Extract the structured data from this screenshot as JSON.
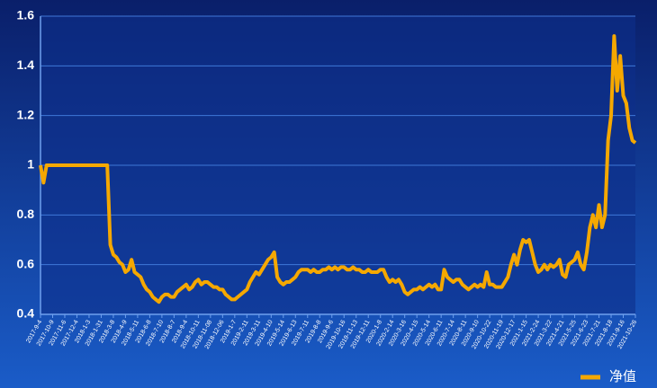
{
  "chart_data": {
    "type": "line",
    "categories": [
      "2017-9-4",
      null,
      null,
      null,
      "2017-10-9",
      null,
      null,
      null,
      "2017-11-6",
      null,
      null,
      null,
      "2017-12-4",
      null,
      null,
      null,
      "2018-1-3",
      null,
      null,
      null,
      "2018-1-31",
      null,
      null,
      null,
      "2018-3-8",
      null,
      null,
      null,
      "2018-4-9",
      null,
      null,
      null,
      "2018-5-11",
      null,
      null,
      null,
      "2018-6-8",
      null,
      null,
      null,
      "2018-7-10",
      null,
      null,
      null,
      "2018-8-7",
      null,
      null,
      null,
      "2018-9-4",
      null,
      null,
      null,
      "2018-10-11",
      null,
      null,
      null,
      "2018-11-08",
      null,
      null,
      null,
      "2018-12-06",
      null,
      null,
      null,
      "2019-1-7",
      null,
      null,
      null,
      "2019-2-11",
      null,
      null,
      null,
      "2019-3-11",
      null,
      null,
      null,
      "2019-4-10",
      null,
      null,
      null,
      "2019-5-14",
      null,
      null,
      null,
      "2019-6-13",
      null,
      null,
      null,
      "2019-7-11",
      null,
      null,
      null,
      "2019-8-8",
      null,
      null,
      null,
      "2019-9-6",
      null,
      null,
      null,
      "2019-10-16",
      null,
      null,
      null,
      "2019-11-13",
      null,
      null,
      null,
      "2019-12-11",
      null,
      null,
      null,
      "2020-1-8",
      null,
      null,
      null,
      "2020-2-14",
      null,
      null,
      null,
      "2020-3-16",
      null,
      null,
      null,
      "2020-4-15",
      null,
      null,
      null,
      "2020-5-14",
      null,
      null,
      null,
      "2020-6-11",
      null,
      null,
      null,
      "2020-7-14",
      null,
      null,
      null,
      "2020-8-11",
      null,
      null,
      null,
      "2020-9-10",
      null,
      null,
      null,
      "2020-10-22",
      null,
      null,
      null,
      "2020-11-19",
      null,
      null,
      null,
      "2020-12-17",
      null,
      null,
      null,
      "2021-1-15",
      null,
      null,
      null,
      "2021-2-24",
      null,
      null,
      null,
      "2021-3-22",
      null,
      null,
      null,
      "2021-4-21",
      null,
      null,
      null,
      "2021-5-25",
      null,
      null,
      null,
      "2021-6-23",
      null,
      null,
      null,
      "2021-7-21",
      null,
      null,
      null,
      "2021-8-18",
      null,
      null,
      null,
      "2021-9-16",
      null,
      null,
      null,
      "2021-10-26"
    ],
    "series": [
      {
        "name": "净值",
        "color": "#f5a800",
        "values": [
          1.0,
          0.93,
          1.0,
          1.0,
          1,
          1,
          1,
          1,
          1,
          1,
          1,
          1,
          1,
          1,
          1,
          1,
          1,
          1,
          1,
          1,
          1,
          1,
          1,
          0.68,
          0.64,
          0.63,
          0.61,
          0.6,
          0.57,
          0.58,
          0.62,
          0.57,
          0.56,
          0.55,
          0.52,
          0.5,
          0.49,
          0.47,
          0.46,
          0.45,
          0.47,
          0.48,
          0.48,
          0.47,
          0.47,
          0.49,
          0.5,
          0.51,
          0.52,
          0.5,
          0.51,
          0.53,
          0.54,
          0.52,
          0.53,
          0.53,
          0.52,
          0.51,
          0.51,
          0.5,
          0.5,
          0.48,
          0.47,
          0.46,
          0.46,
          0.47,
          0.48,
          0.49,
          0.5,
          0.53,
          0.55,
          0.57,
          0.56,
          0.58,
          0.6,
          0.62,
          0.63,
          0.65,
          0.55,
          0.53,
          0.52,
          0.53,
          0.53,
          0.54,
          0.55,
          0.57,
          0.58,
          0.58,
          0.58,
          0.57,
          0.58,
          0.57,
          0.57,
          0.58,
          0.58,
          0.59,
          0.58,
          0.59,
          0.58,
          0.59,
          0.59,
          0.58,
          0.58,
          0.59,
          0.58,
          0.58,
          0.57,
          0.57,
          0.58,
          0.57,
          0.57,
          0.57,
          0.58,
          0.58,
          0.55,
          0.53,
          0.54,
          0.53,
          0.54,
          0.52,
          0.49,
          0.48,
          0.49,
          0.5,
          0.5,
          0.51,
          0.5,
          0.51,
          0.52,
          0.51,
          0.52,
          0.5,
          0.5,
          0.58,
          0.55,
          0.54,
          0.53,
          0.54,
          0.54,
          0.52,
          0.51,
          0.5,
          0.51,
          0.52,
          0.51,
          0.52,
          0.51,
          0.57,
          0.52,
          0.52,
          0.51,
          0.51,
          0.51,
          0.53,
          0.55,
          0.6,
          0.64,
          0.6,
          0.66,
          0.7,
          0.69,
          0.7,
          0.65,
          0.6,
          0.57,
          0.58,
          0.6,
          0.58,
          0.6,
          0.59,
          0.6,
          0.62,
          0.56,
          0.55,
          0.6,
          0.61,
          0.62,
          0.65,
          0.6,
          0.58,
          0.65,
          0.75,
          0.8,
          0.75,
          0.84,
          0.75,
          0.8,
          1.1,
          1.2,
          1.52,
          1.3,
          1.44,
          1.28,
          1.25,
          1.15,
          1.1,
          1.09
        ]
      }
    ],
    "ylim": [
      0.4,
      1.6
    ],
    "yticks": [
      0.4,
      0.6,
      0.8,
      1,
      1.2,
      1.4,
      1.6
    ],
    "grid": true,
    "legend": "bottom-right"
  }
}
